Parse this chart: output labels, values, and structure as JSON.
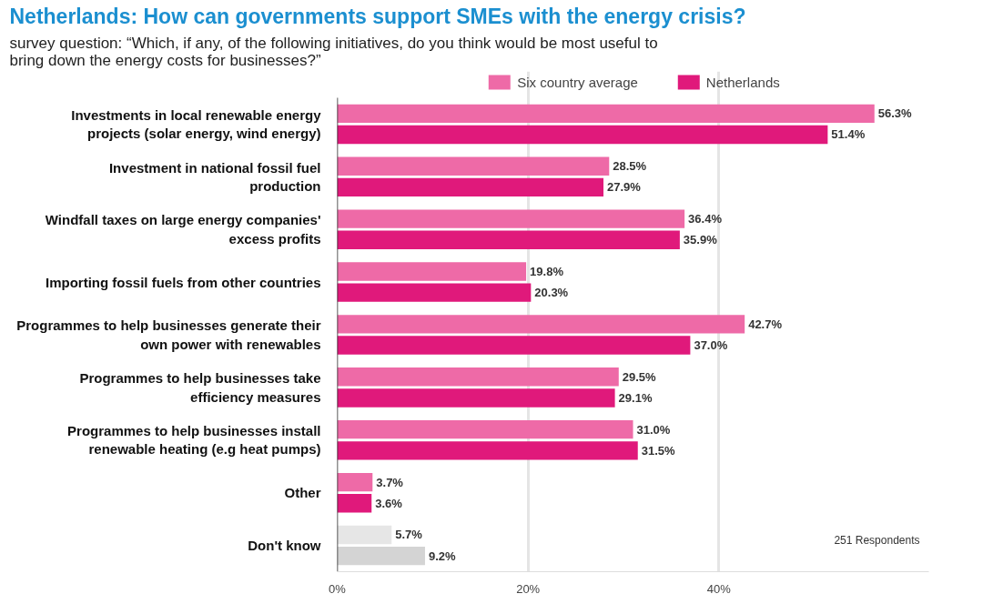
{
  "chart_data": {
    "type": "bar",
    "orientation": "horizontal",
    "title": "Netherlands: How can governments support SMEs with the energy crisis?",
    "subtitle": "survey question: “Which, if any, of the following initiatives, do you think would be most useful to bring down the energy costs for businesses?”",
    "categories": [
      "Investments in local renewable energy projects (solar energy, wind energy)",
      "Investment in national fossil fuel production",
      "Windfall taxes on large energy companies' excess profits",
      "Importing fossil fuels from other countries",
      "Programmes to help businesses generate their own power with renewables",
      "Programmes to help businesses take efficiency measures",
      "Programmes to help businesses install renewable heating (e.g heat pumps)",
      "Other",
      "Don't know"
    ],
    "series": [
      {
        "name": "Six country average",
        "color": "#ee6aa7",
        "colors": [
          "#ee6aa7",
          "#ee6aa7",
          "#ee6aa7",
          "#ee6aa7",
          "#ee6aa7",
          "#ee6aa7",
          "#ee6aa7",
          "#ee6aa7",
          "#e6e6e6"
        ],
        "values": [
          56.3,
          28.5,
          36.4,
          19.8,
          42.7,
          29.5,
          31.0,
          3.7,
          5.7
        ],
        "value_labels": [
          "56.3%",
          "28.5%",
          "36.4%",
          "19.8%",
          "42.7%",
          "29.5%",
          "31.0%",
          "3.7%",
          "5.7%"
        ]
      },
      {
        "name": "Netherlands",
        "color": "#e0197b",
        "colors": [
          "#e0197b",
          "#e0197b",
          "#e0197b",
          "#e0197b",
          "#e0197b",
          "#e0197b",
          "#e0197b",
          "#e0197b",
          "#d4d4d4"
        ],
        "values": [
          51.4,
          27.9,
          35.9,
          20.3,
          37.0,
          29.1,
          31.5,
          3.6,
          9.2
        ],
        "value_labels": [
          "51.4%",
          "27.9%",
          "35.9%",
          "20.3%",
          "37.0%",
          "29.1%",
          "31.5%",
          "3.6%",
          "9.2%"
        ]
      }
    ],
    "xlim": [
      0,
      62
    ],
    "xticks": [
      {
        "value": 0,
        "label": "0%"
      },
      {
        "value": 20,
        "label": "20%"
      },
      {
        "value": 40,
        "label": "40%"
      }
    ],
    "grid": "x",
    "legend": "top",
    "annotations": [
      "251 Respondents"
    ]
  }
}
